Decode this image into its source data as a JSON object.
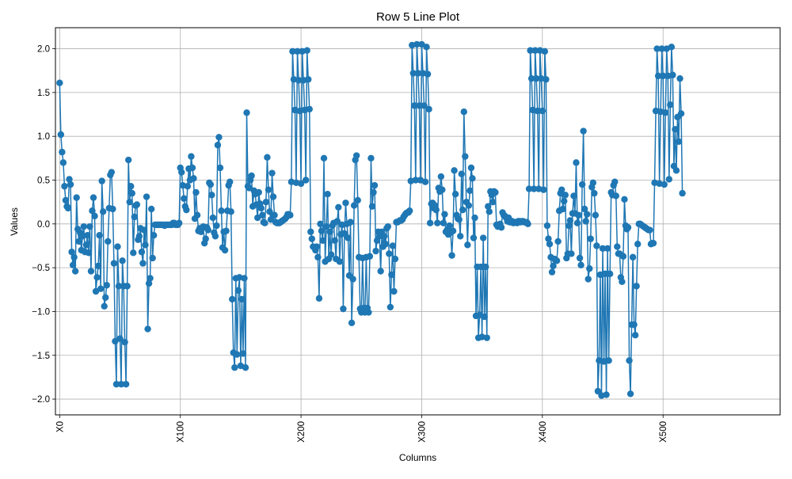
{
  "chart_data": {
    "type": "line",
    "title": "Row 5 Line Plot",
    "xlabel": "Columns",
    "ylabel": "Values",
    "xlim": [
      -3.5,
      597.0
    ],
    "ylim": [
      -2.18,
      2.24
    ],
    "grid": true,
    "marker": "circle",
    "colors": {
      "line": "#1f77b4",
      "grid": "#b0b0b0",
      "axis": "#000000",
      "background": "#ffffff"
    },
    "x_ticks": [
      {
        "value": 0,
        "label": "X0"
      },
      {
        "value": 100,
        "label": "X100"
      },
      {
        "value": 200,
        "label": "X200"
      },
      {
        "value": 300,
        "label": "X300"
      },
      {
        "value": 400,
        "label": "X400"
      },
      {
        "value": 500,
        "label": "X500"
      }
    ],
    "y_ticks": [
      {
        "value": -2.0,
        "label": "−2.0"
      },
      {
        "value": -1.5,
        "label": "−1.5"
      },
      {
        "value": -1.0,
        "label": "−1.0"
      },
      {
        "value": -0.5,
        "label": "−0.5"
      },
      {
        "value": 0.0,
        "label": "0.0"
      },
      {
        "value": 0.5,
        "label": "0.5"
      },
      {
        "value": 1.0,
        "label": "1.0"
      },
      {
        "value": 1.5,
        "label": "1.5"
      },
      {
        "value": 2.0,
        "label": "2.0"
      }
    ],
    "series": [
      {
        "name": "Row 5",
        "x_start": 0,
        "values": [
          1.61,
          1.02,
          0.82,
          0.7,
          0.43,
          0.27,
          0.2,
          0.18,
          0.51,
          0.45,
          -0.32,
          -0.47,
          -0.38,
          -0.54,
          0.3,
          -0.06,
          -0.2,
          -0.1,
          -0.3,
          -0.14,
          -0.03,
          -0.32,
          -0.24,
          -0.13,
          -0.33,
          -0.03,
          -0.54,
          0.15,
          0.3,
          0.09,
          -0.77,
          -0.61,
          -0.48,
          -0.13,
          -0.74,
          0.49,
          0.14,
          -0.94,
          -0.84,
          -0.7,
          -0.2,
          0.18,
          0.56,
          0.59,
          0.17,
          -0.45,
          -1.34,
          -1.83,
          -0.26,
          -0.71,
          -1.31,
          -1.83,
          -0.42,
          -0.71,
          -1.35,
          -1.83,
          -0.71,
          0.73,
          0.25,
          0.43,
          0.35,
          -0.33,
          0.08,
          0.21,
          0.22,
          -0.18,
          -0.14,
          -0.05,
          -0.32,
          -0.45,
          -0.07,
          -0.24,
          0.31,
          -1.2,
          -0.68,
          -0.62,
          0.17,
          -0.39,
          -0.13,
          -0.01,
          -0.01,
          -0.01,
          -0.01,
          -0.01,
          -0.01,
          -0.01,
          -0.01,
          -0.02,
          -0.01,
          -0.01,
          -0.01,
          -0.01,
          -0.01,
          -0.01,
          0.01,
          0.01,
          -0.01,
          -0.01,
          -0.01,
          0.01,
          0.64,
          0.59,
          0.44,
          0.29,
          0.2,
          0.16,
          0.43,
          0.63,
          0.5,
          0.77,
          0.64,
          0.52,
          0.06,
          0.36,
          0.1,
          -0.08,
          -0.05,
          -0.09,
          -0.05,
          -0.03,
          -0.22,
          -0.17,
          -0.04,
          -0.07,
          0.47,
          0.45,
          0.33,
          0.07,
          -0.1,
          -0.14,
          -0.02,
          0.9,
          0.99,
          0.64,
          0.15,
          -0.27,
          -0.09,
          -0.3,
          -0.08,
          0.15,
          0.44,
          0.48,
          0.14,
          -0.86,
          -1.47,
          -1.64,
          -0.62,
          -1.49,
          -0.76,
          -0.61,
          -1.62,
          -0.86,
          -1.48,
          -0.62,
          -1.64,
          1.27,
          0.43,
          0.41,
          0.5,
          0.55,
          0.2,
          0.38,
          0.34,
          0.22,
          0.07,
          0.36,
          0.23,
          0.18,
          0.1,
          0.02,
          0.01,
          0.25,
          0.76,
          0.39,
          0.14,
          0.05,
          0.58,
          0.31,
          0.1,
          0.02,
          0.01,
          0.01,
          0.01,
          0.02,
          0.03,
          0.04,
          0.05,
          0.06,
          0.08,
          0.11,
          0.11,
          0.1,
          0.48,
          1.97,
          1.65,
          1.3,
          0.47,
          1.97,
          1.64,
          1.29,
          0.46,
          1.97,
          1.64,
          1.3,
          0.5,
          1.98,
          1.65,
          1.31,
          -0.09,
          -0.17,
          -0.26,
          -0.27,
          -0.3,
          -0.26,
          -0.38,
          -0.85,
          0.0,
          -0.08,
          -0.19,
          0.75,
          -0.43,
          -0.03,
          0.34,
          -0.4,
          -0.09,
          -0.35,
          -0.02,
          0.01,
          -0.19,
          -0.4,
          0.03,
          0.19,
          -0.43,
          -0.12,
          -0.01,
          -0.97,
          -0.11,
          0.24,
          0.0,
          -0.16,
          -0.59,
          0.02,
          -1.13,
          -0.63,
          0.21,
          0.73,
          0.78,
          0.27,
          -0.38,
          -0.97,
          -1.01,
          -0.39,
          -0.96,
          -1.01,
          -0.38,
          -0.96,
          -1.01,
          -0.37,
          0.75,
          0.2,
          0.36,
          0.44,
          -0.31,
          -0.19,
          -0.09,
          -0.14,
          -0.54,
          -0.09,
          -0.26,
          -0.14,
          -0.23,
          -0.05,
          -0.03,
          -0.34,
          -0.95,
          -0.58,
          -0.25,
          -0.77,
          -0.4,
          0.02,
          0.02,
          0.03,
          0.04,
          0.04,
          0.05,
          0.08,
          0.1,
          0.12,
          0.13,
          0.13,
          0.15,
          0.49,
          2.04,
          1.72,
          1.35,
          0.5,
          2.05,
          1.72,
          1.35,
          0.5,
          2.05,
          1.72,
          1.35,
          0.48,
          2.02,
          1.71,
          1.31,
          0.01,
          0.23,
          0.24,
          0.18,
          0.21,
          0.16,
          0.01,
          0.41,
          0.37,
          0.54,
          0.39,
          0.01,
          0.11,
          -0.09,
          -0.07,
          -0.12,
          -0.02,
          -0.1,
          -0.36,
          -0.08,
          0.61,
          0.34,
          0.1,
          0.06,
          0.05,
          -0.14,
          0.57,
          0.16,
          1.28,
          0.77,
          0.25,
          -0.24,
          0.21,
          0.38,
          0.64,
          0.52,
          -0.16,
          0.07,
          -1.05,
          -0.49,
          -1.3,
          -1.04,
          -0.49,
          -1.29,
          -0.16,
          -1.06,
          -0.49,
          -1.3,
          0.2,
          0.14,
          0.37,
          0.33,
          0.25,
          0.37,
          0.36,
          -0.01,
          -0.03,
          -0.02,
          0.0,
          -0.04,
          0.13,
          0.1,
          0.09,
          0.07,
          0.03,
          0.07,
          0.02,
          0.02,
          0.03,
          0.01,
          0.02,
          0.02,
          0.01,
          0.03,
          0.03,
          0.02,
          0.03,
          0.03,
          0.02,
          0.02,
          0.02,
          0.0,
          0.4,
          1.98,
          1.66,
          1.3,
          0.4,
          1.98,
          1.66,
          1.29,
          0.4,
          1.98,
          1.66,
          1.29,
          0.39,
          1.97,
          1.65,
          -0.02,
          -0.17,
          -0.23,
          -0.38,
          -0.55,
          -0.48,
          -0.4,
          -0.42,
          -0.42,
          -0.2,
          0.15,
          0.35,
          0.39,
          0.17,
          0.26,
          0.33,
          -0.39,
          -0.34,
          -0.02,
          0.04,
          -0.34,
          0.12,
          0.32,
          0.12,
          0.7,
          0.01,
          0.1,
          -0.39,
          -0.47,
          0.45,
          1.06,
          0.17,
          0.03,
          0.11,
          -0.63,
          -0.51,
          -0.17,
          0.42,
          0.47,
          0.35,
          0.1,
          -0.25,
          -1.91,
          -1.56,
          -0.58,
          -1.96,
          -0.28,
          -1.57,
          -0.57,
          -1.95,
          -0.28,
          -1.56,
          -0.57,
          0.36,
          0.33,
          0.44,
          0.48,
          0.32,
          -0.26,
          -0.34,
          -0.34,
          -0.61,
          -0.66,
          -0.37,
          0.28,
          -0.02,
          -0.06,
          -0.04,
          -1.56,
          -1.94,
          -1.15,
          -0.38,
          -1.15,
          -1.27,
          -0.71,
          -0.23,
          0.0,
          0.0,
          -0.01,
          -0.02,
          -0.03,
          -0.04,
          -0.05,
          -0.06,
          -0.07,
          -0.07,
          -0.23,
          -0.22,
          -0.22,
          0.47,
          1.29,
          2.0,
          1.69,
          0.46,
          1.28,
          2.0,
          1.69,
          0.45,
          1.27,
          2.0,
          1.69,
          0.51,
          1.36,
          2.02,
          1.7,
          0.66,
          1.08,
          0.61,
          1.22,
          0.94,
          1.66,
          1.26,
          0.35
        ]
      }
    ]
  }
}
